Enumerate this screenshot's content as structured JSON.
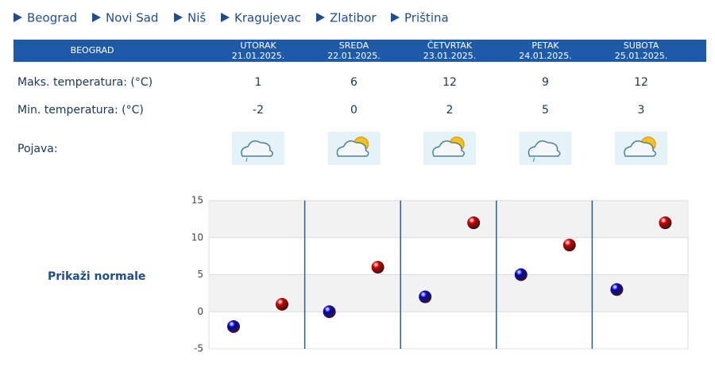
{
  "nav": [
    "Beograd",
    "Novi Sad",
    "Niš",
    "Kragujevac",
    "Zlatibor",
    "Priština"
  ],
  "table": {
    "title": "BEOGRAD",
    "days": [
      {
        "name": "UTORAK",
        "date": "21.01.2025."
      },
      {
        "name": "SREDA",
        "date": "22.01.2025."
      },
      {
        "name": "ČETVRTAK",
        "date": "23.01.2025."
      },
      {
        "name": "PETAK",
        "date": "24.01.2025."
      },
      {
        "name": "SUBOTA",
        "date": "25.01.2025."
      }
    ],
    "rows": [
      {
        "label": "Maks. temperatura: (°C)",
        "values": [
          1,
          6,
          12,
          9,
          12
        ]
      },
      {
        "label": "Min. temperatura: (°C)",
        "values": [
          -2,
          0,
          2,
          5,
          3
        ]
      }
    ],
    "icon_label": "Pojava:"
  },
  "link": "Prikaži normale",
  "chart_data": {
    "type": "scatter",
    "ylim": [
      -5,
      15
    ],
    "yticks": [
      -5,
      0,
      5,
      10,
      15
    ],
    "grid": true,
    "series": [
      {
        "color": "#0000c8",
        "values": [
          -2,
          0,
          2,
          5,
          3
        ]
      },
      {
        "color": "#d00000",
        "values": [
          1,
          6,
          12,
          9,
          12
        ]
      }
    ]
  }
}
